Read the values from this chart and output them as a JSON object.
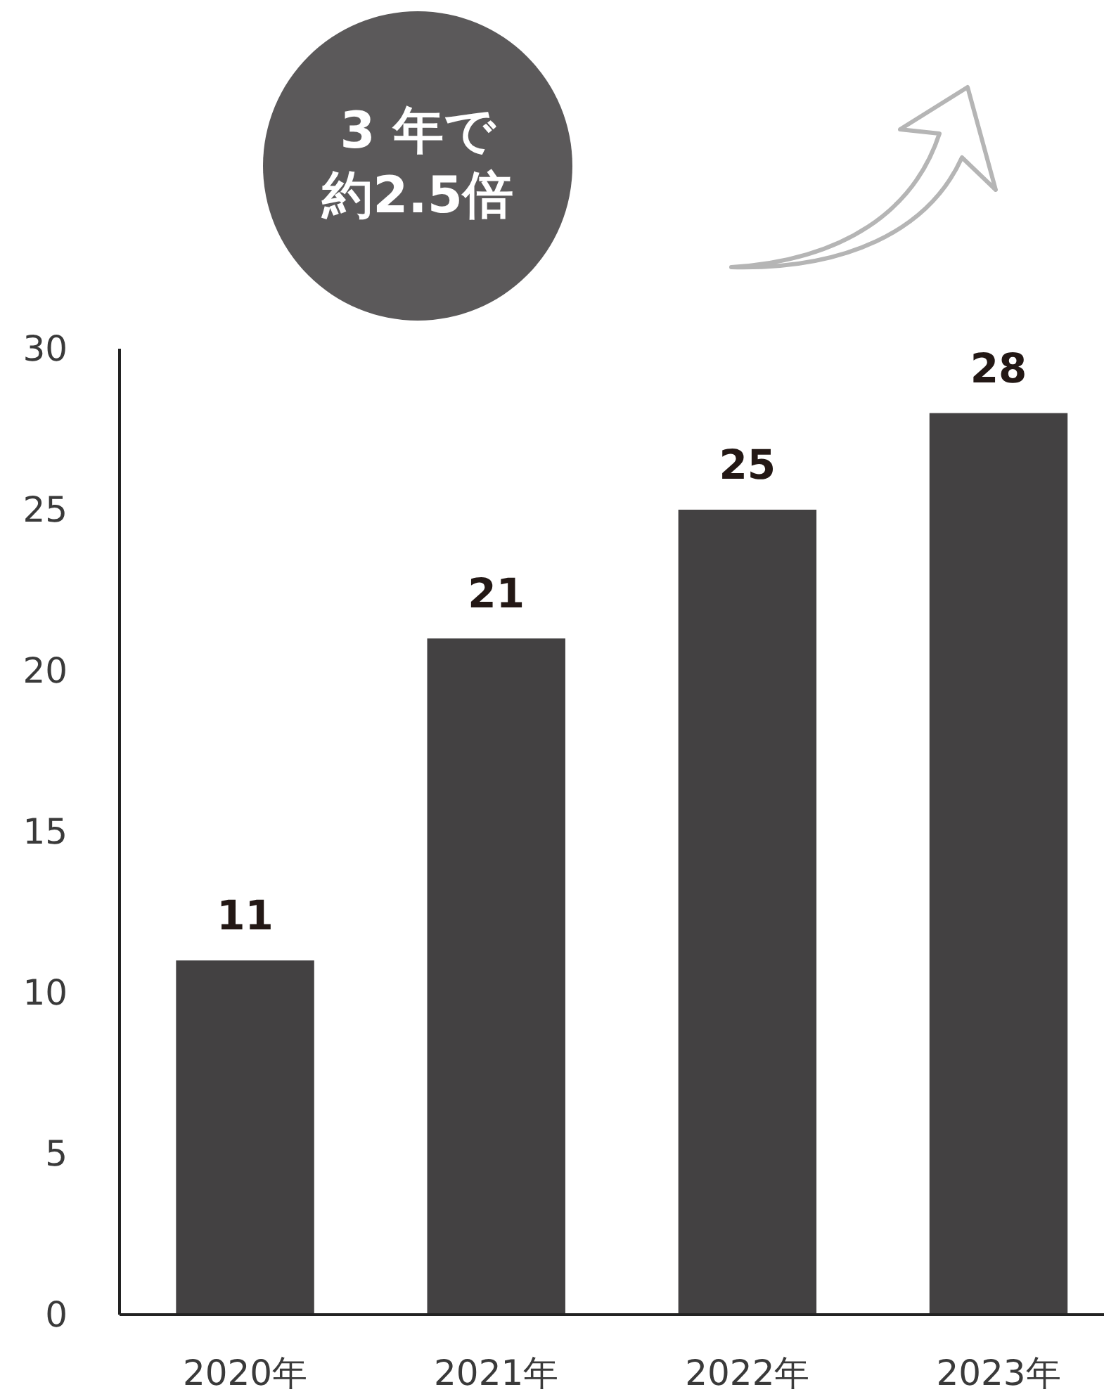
{
  "chart_data": {
    "type": "bar",
    "categories": [
      "2020年",
      "2021年",
      "2022年",
      "2023年"
    ],
    "values": [
      11,
      21,
      25,
      28
    ],
    "color": "#434142",
    "data_labels": true,
    "ylim": [
      0,
      30
    ],
    "yticks": [
      0,
      5,
      10,
      15,
      20,
      25,
      30
    ],
    "grid": false,
    "annotations": [
      "3 年で",
      "約2.5倍"
    ]
  }
}
